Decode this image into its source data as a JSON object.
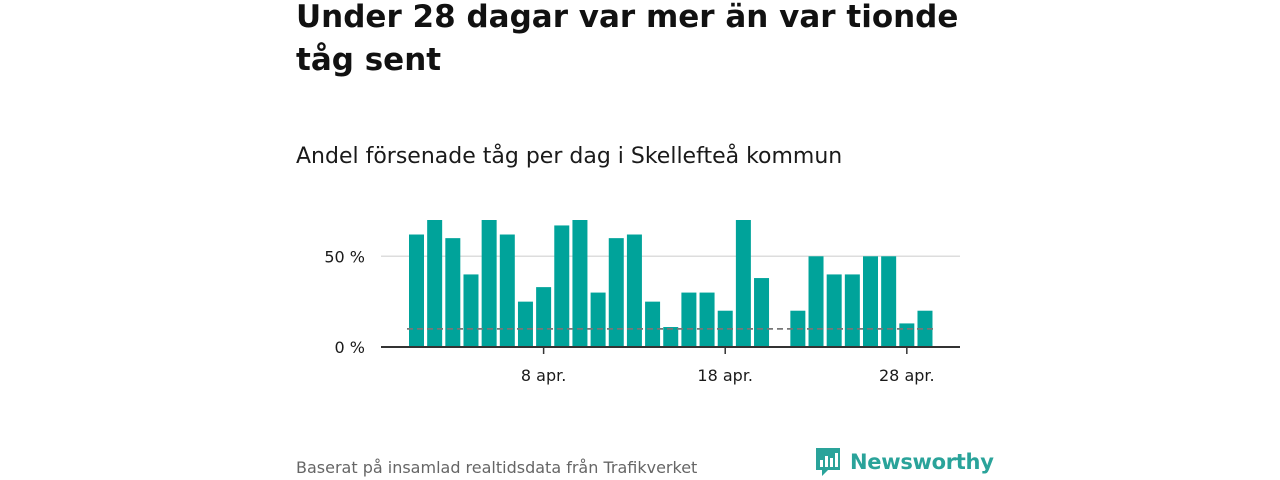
{
  "headline": "Under 28 dagar var mer än var tionde tåg sent",
  "subtitle": "Andel försenade tåg per dag i Skellefteå kommun",
  "source": "Baserat på insamlad realtidsdata från Trafikverket",
  "brand": {
    "name": "Newsworthy",
    "logo_icon": "bar-chart-speech-bubble-icon"
  },
  "colors": {
    "bar": "#00a39a",
    "reference_line": "#777777",
    "axis": "#333333",
    "gridline": "#dddddd",
    "brand": "#2aa39a"
  },
  "chart_data": {
    "type": "bar",
    "title": "Andel försenade tåg per dag i Skellefteå kommun",
    "xlabel": "",
    "ylabel": "",
    "unit": "%",
    "days": [
      1,
      2,
      3,
      4,
      5,
      6,
      7,
      8,
      9,
      10,
      11,
      12,
      13,
      14,
      15,
      16,
      17,
      18,
      19,
      20,
      21,
      22,
      23,
      24,
      25,
      26,
      27,
      28,
      29,
      30
    ],
    "values": [
      62,
      70,
      60,
      40,
      70,
      62,
      25,
      33,
      67,
      70,
      30,
      60,
      62,
      25,
      11,
      30,
      30,
      20,
      70,
      38,
      null,
      20,
      50,
      40,
      40,
      50,
      50,
      13,
      20,
      null
    ],
    "reference_line": {
      "value": 10,
      "style": "dashed"
    },
    "ylim": [
      0,
      70
    ],
    "y_ticks": [
      {
        "value": 0,
        "label": "0 %"
      },
      {
        "value": 50,
        "label": "50 %"
      }
    ],
    "x_ticks": [
      {
        "day": 8,
        "label": "8 apr."
      },
      {
        "day": 18,
        "label": "18 apr."
      },
      {
        "day": 28,
        "label": "28 apr."
      }
    ]
  }
}
